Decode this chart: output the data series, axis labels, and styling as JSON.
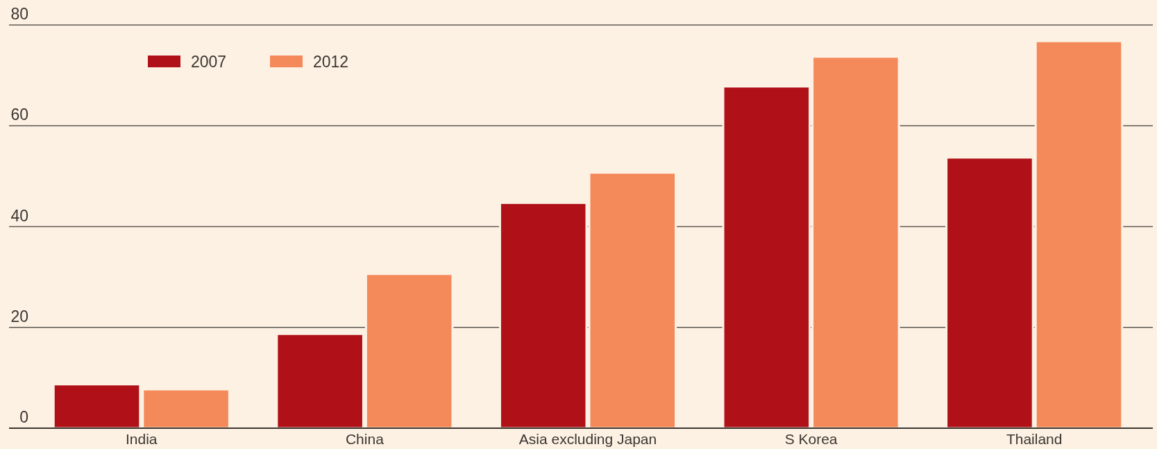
{
  "chart_data": {
    "type": "bar",
    "categories": [
      "India",
      "China",
      "Asia excluding Japan",
      "S Korea",
      "Thailand"
    ],
    "series": [
      {
        "name": "2007",
        "color": "#b01118",
        "values": [
          8.7,
          18.7,
          44.7,
          67.8,
          53.7
        ]
      },
      {
        "name": "2012",
        "color": "#f4895a",
        "values": [
          7.7,
          30.6,
          50.7,
          73.7,
          76.8
        ]
      }
    ],
    "ylim": [
      0,
      80
    ],
    "yticks": [
      0,
      20,
      40,
      60,
      80
    ],
    "grid": "y",
    "legend": "top left"
  }
}
